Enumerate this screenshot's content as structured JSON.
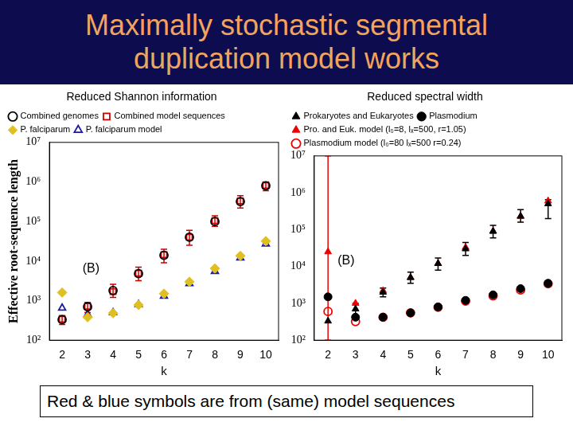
{
  "title": "Maximally stochastic segmental duplication model works",
  "caption": "Red & blue symbols are from (same) model sequences",
  "chart_data": [
    {
      "type": "scatter",
      "title": "Reduced Shannon information",
      "xlabel": "k",
      "ylabel": "Effective root-sequence length",
      "x": [
        2,
        3,
        4,
        5,
        6,
        7,
        8,
        9,
        10
      ],
      "series": [
        {
          "name": "Combined genomes",
          "color": "#000000",
          "marker": "circle-open",
          "values": [
            330,
            700,
            1800,
            4800,
            14000,
            40000,
            100000,
            320000,
            800000
          ]
        },
        {
          "name": "Combined model sequences",
          "color": "#cc0000",
          "marker": "square-open",
          "values": [
            340,
            720,
            1700,
            4900,
            14500,
            40000,
            105000,
            330000,
            820000
          ],
          "error_low": [
            250,
            500,
            1200,
            3200,
            9000,
            25000,
            75000,
            220000,
            600000
          ],
          "error_high": [
            420,
            900,
            2600,
            7000,
            20000,
            60000,
            140000,
            450000,
            1000000
          ]
        },
        {
          "name": "P. falciparum",
          "color": "#e0c020",
          "marker": "diamond",
          "values": [
            1600,
            380,
            480,
            780,
            1500,
            3000,
            6500,
            13500,
            32000
          ]
        },
        {
          "name": "P. falciparum model",
          "color": "#1a1aa0",
          "marker": "triangle-open",
          "values": [
            650,
            450,
            500,
            800,
            1300,
            2700,
            5500,
            12000,
            27000
          ]
        }
      ],
      "xlim": [
        1.5,
        10.5
      ],
      "xticks": [
        2,
        3,
        4,
        5,
        6,
        7,
        8,
        9,
        10
      ],
      "ylim": [
        100,
        10000000
      ],
      "yticks": [
        {
          "value": 100,
          "label": "10²"
        },
        {
          "value": 1000,
          "label": "10³"
        },
        {
          "value": 10000,
          "label": "10⁴"
        },
        {
          "value": 100000,
          "label": "10⁵"
        },
        {
          "value": 1000000,
          "label": "10⁶"
        },
        {
          "value": 10000000,
          "label": "10⁷"
        }
      ],
      "log": "y",
      "grid": false,
      "legend": "top",
      "annotations": [
        {
          "text": "(B)",
          "x": 2.8,
          "y": 6500
        }
      ]
    },
    {
      "type": "scatter",
      "title": "Reduced spectral width",
      "xlabel": "k",
      "x": [
        2,
        3,
        4,
        5,
        6,
        7,
        8,
        9,
        10
      ],
      "series": [
        {
          "name": "Prokaryotes and Eukaryotes",
          "color": "#000000",
          "marker": "triangle",
          "values": [
            330,
            700,
            2000,
            5000,
            12000,
            30000,
            90000,
            230000,
            500000
          ],
          "error_low": [
            null,
            450,
            1500,
            3500,
            8000,
            20000,
            60000,
            160000,
            200000
          ],
          "error_high": [
            null,
            1000,
            2600,
            7000,
            17000,
            45000,
            130000,
            350000,
            650000
          ]
        },
        {
          "name": "Plasmodium",
          "color": "#000000",
          "marker": "circle",
          "values": [
            1500,
            420,
            420,
            550,
            800,
            1200,
            1700,
            2500,
            3500
          ]
        },
        {
          "name": "Pro. and Euk. model (l₀=8, lₓ=500, r=1.05)",
          "color": "#ee0000",
          "marker": "triangle",
          "values": [
            25000,
            1000,
            2200,
            5000,
            12000,
            33000,
            90000,
            230000,
            600000
          ],
          "error_low": [
            100,
            null,
            null,
            null,
            null,
            null,
            null,
            null,
            null
          ],
          "error_high": [
            10000000,
            null,
            null,
            null,
            null,
            null,
            null,
            null,
            null
          ]
        },
        {
          "name": "Plasmodium model (l₀=80 lₓ=500 r=0.24)",
          "color": "#ee0000",
          "marker": "circle-open",
          "values": [
            600,
            320,
            420,
            550,
            780,
            1150,
            1600,
            2300,
            3400
          ]
        }
      ],
      "xlim": [
        1.5,
        10.5
      ],
      "xticks": [
        2,
        3,
        4,
        5,
        6,
        7,
        8,
        9,
        10
      ],
      "ylim": [
        100,
        10000000
      ],
      "yticks": [
        {
          "value": 100,
          "label": "10²"
        },
        {
          "value": 1000,
          "label": "10³"
        },
        {
          "value": 10000,
          "label": "10⁴"
        },
        {
          "value": 100000,
          "label": "10⁵"
        },
        {
          "value": 1000000,
          "label": "10⁶"
        },
        {
          "value": 10000000,
          "label": "10⁷"
        }
      ],
      "log": "y",
      "grid": false,
      "legend": "top",
      "annotations": [
        {
          "text": "(B)",
          "x": 2.35,
          "y": 14000
        }
      ]
    }
  ]
}
